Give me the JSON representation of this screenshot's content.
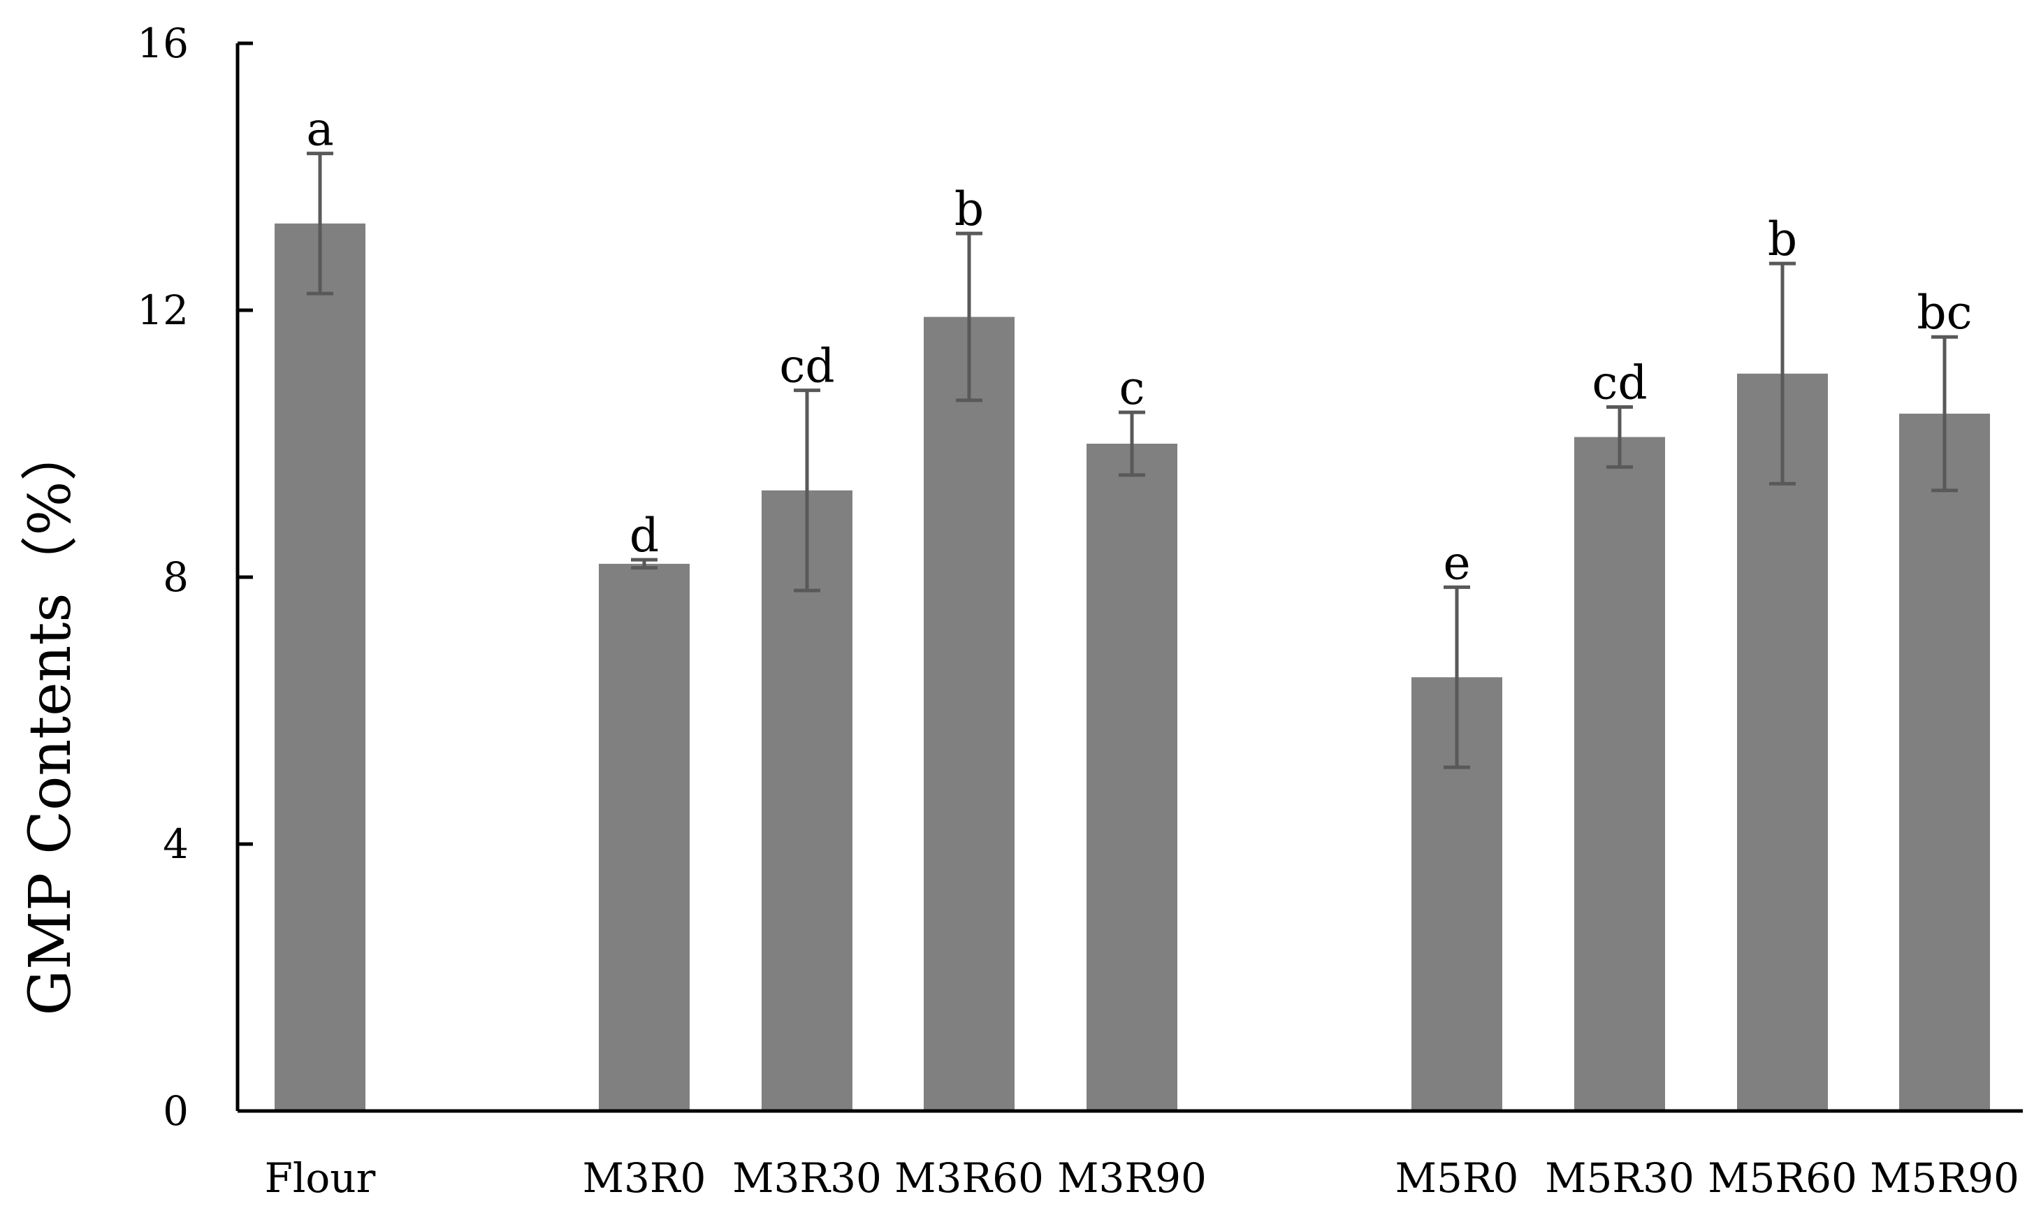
{
  "chart_data": {
    "type": "bar",
    "title": "",
    "xlabel": "",
    "ylabel": "GMP Contents（%）",
    "ylim": [
      0,
      16
    ],
    "yticks": [
      0,
      4,
      8,
      12,
      16
    ],
    "grid": false,
    "bar_color": "#808080",
    "error_bar_color": "#595959",
    "categories": [
      "Flour",
      "M3R0",
      "M3R30",
      "M3R60",
      "M3R90",
      "M5R0",
      "M5R30",
      "M5R60",
      "M5R90"
    ],
    "values": [
      13.3,
      8.2,
      9.3,
      11.9,
      10.0,
      6.5,
      10.1,
      11.05,
      10.45
    ],
    "errors": [
      1.05,
      0.06,
      1.5,
      1.25,
      0.47,
      1.35,
      0.45,
      1.65,
      1.15
    ],
    "significance": [
      "a",
      "d",
      "cd",
      "b",
      "c",
      "e",
      "cd",
      "b",
      "bc"
    ]
  }
}
